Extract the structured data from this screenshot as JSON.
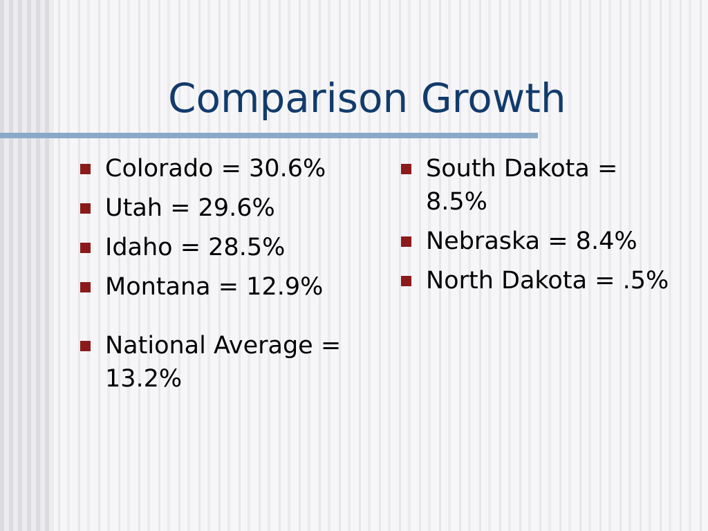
{
  "slide": {
    "title": "Comparison Growth",
    "accent_color": "#123b6b",
    "rule_color": "#8aa9c8",
    "bullet_color": "#8b1a1a",
    "left_column": [
      "Colorado = 30.6%",
      "Utah = 29.6%",
      "Idaho = 28.5%",
      "Montana = 12.9%",
      "National Average = 13.2%"
    ],
    "right_column": [
      "South Dakota = 8.5%",
      "Nebraska = 8.4%",
      "North Dakota = .5%"
    ]
  }
}
